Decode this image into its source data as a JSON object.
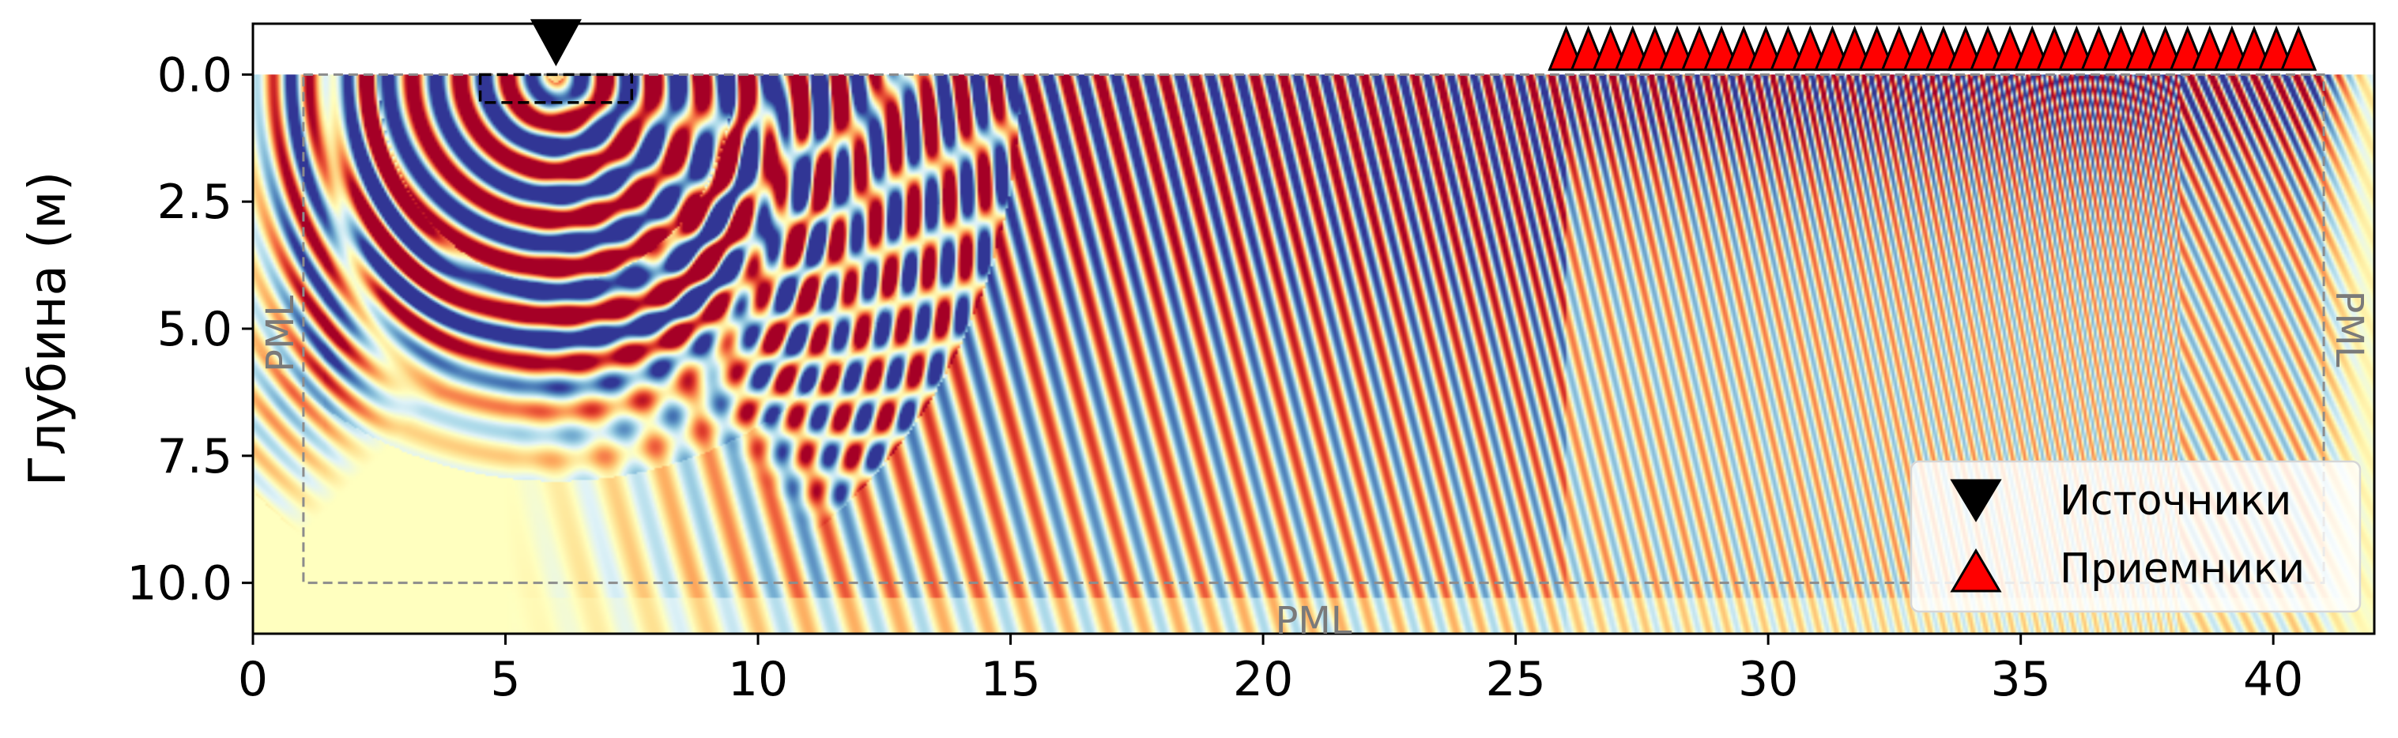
{
  "chart_data": {
    "type": "heatmap",
    "title": "",
    "xlabel": "",
    "ylabel": "Глубина (м)",
    "xlim": [
      0,
      42
    ],
    "ylim": [
      11,
      -1
    ],
    "x_ticks": [
      "0",
      "5",
      "10",
      "15",
      "20",
      "25",
      "30",
      "35",
      "40"
    ],
    "y_ticks": [
      "0.0",
      "2.5",
      "5.0",
      "7.5",
      "10.0"
    ],
    "colormap": "RdYlBu",
    "colors": {
      "red": "#a50026",
      "blue": "#313695",
      "neutral": "#ffffbf",
      "frame": "#000000",
      "pml_line": "#8c8c8c",
      "receiver": "#ff0000"
    },
    "pml": {
      "label": "PML",
      "region": {
        "x": [
          1,
          41
        ],
        "y": [
          0,
          10
        ]
      }
    },
    "source": {
      "x": 6.0,
      "y": -0.6,
      "box": {
        "x": [
          4.5,
          7.5
        ],
        "y": [
          0,
          0.55
        ]
      }
    },
    "receivers": {
      "x_start": 26.0,
      "x_end": 40.5,
      "count": 34,
      "y": -0.5
    },
    "legend": {
      "placement": "lower-right",
      "entries": [
        {
          "name": "Источники",
          "marker": "triangle-down",
          "color": "#000000"
        },
        {
          "name": "Приемники",
          "marker": "triangle-up",
          "color": "#ff0000"
        }
      ]
    }
  }
}
